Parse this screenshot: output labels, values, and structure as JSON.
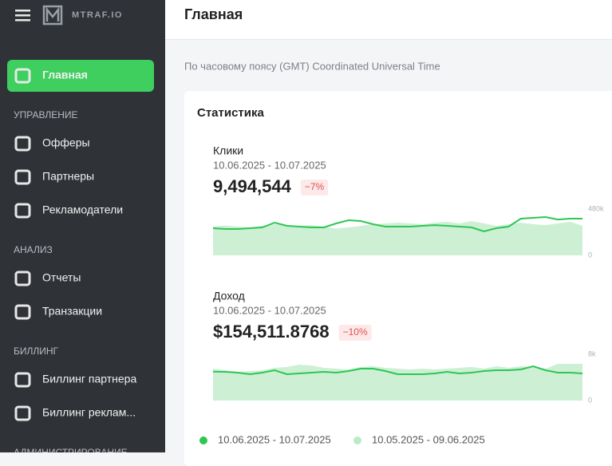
{
  "sidebar": {
    "brand": "MTRAF.IO",
    "menu": [
      {
        "label": "Главная",
        "kind": "link",
        "active": true
      },
      {
        "label": "УПРАВЛЕНИЕ",
        "kind": "section"
      },
      {
        "label": "Офферы",
        "kind": "link"
      },
      {
        "label": "Партнеры",
        "kind": "link"
      },
      {
        "label": "Рекламодатели",
        "kind": "link"
      },
      {
        "label": "АНАЛИЗ",
        "kind": "section"
      },
      {
        "label": "Отчеты",
        "kind": "link"
      },
      {
        "label": "Транзакции",
        "kind": "link"
      },
      {
        "label": "БИЛЛИНГ",
        "kind": "section"
      },
      {
        "label": "Биллинг партнера",
        "kind": "link"
      },
      {
        "label": "Биллинг реклам...",
        "kind": "link"
      },
      {
        "label": "АДМИНИСТРИРОВАНИЕ",
        "kind": "section"
      }
    ]
  },
  "header": {
    "title": "Главная"
  },
  "timezone": "По часовому поясу (GMT) Coordinated Universal Time",
  "stats": {
    "title": "Статистика"
  },
  "chart_data": [
    {
      "type": "area-line",
      "title": "Клики",
      "subtitle": "10.06.2025 - 10.07.2025",
      "total": "9,494,544",
      "change": "−7%",
      "ylim": [
        0,
        480000
      ],
      "yticks": [
        {
          "value": 480000,
          "label": "480k"
        },
        0
      ],
      "series": [
        {
          "name": "10.06.2025 - 10.07.2025",
          "color": "#2ec654",
          "values": [
            281000,
            273000,
            273000,
            281000,
            290000,
            339000,
            306000,
            298000,
            290000,
            290000,
            331000,
            364000,
            356000,
            323000,
            298000,
            298000,
            298000,
            306000,
            314000,
            306000,
            298000,
            290000,
            248000,
            281000,
            298000,
            381000,
            389000,
            397000,
            372000,
            381000,
            381000
          ]
        },
        {
          "name": "10.05.2025 - 09.06.2025",
          "color": "#cdf0d5",
          "values": [
            300000,
            310000,
            298000,
            290000,
            306000,
            323000,
            315000,
            306000,
            314000,
            298000,
            280000,
            290000,
            306000,
            323000,
            331000,
            339000,
            331000,
            323000,
            339000,
            348000,
            331000,
            356000,
            331000,
            306000,
            323000,
            339000,
            323000,
            314000,
            331000,
            348000,
            306000
          ]
        }
      ]
    },
    {
      "type": "area-line",
      "title": "Доход",
      "subtitle": "10.06.2025 - 10.07.2025",
      "total": "$154,511.8768",
      "change": "−10%",
      "ylim": [
        0,
        8000
      ],
      "yticks": [
        {
          "value": 8000,
          "label": "8k"
        },
        0
      ],
      "series": [
        {
          "name": "10.06.2025 - 10.07.2025",
          "color": "#2ec654",
          "values": [
            5000,
            4970,
            4830,
            4550,
            4830,
            5240,
            4550,
            4690,
            4830,
            4970,
            4830,
            5100,
            5520,
            5520,
            5100,
            4550,
            4550,
            4550,
            4690,
            4970,
            4690,
            4830,
            5100,
            5240,
            5240,
            5380,
            5930,
            5240,
            4830,
            4830,
            4690
          ]
        },
        {
          "name": "10.05.2025 - 09.06.2025",
          "color": "#cdf0d5",
          "values": [
            5520,
            5240,
            4970,
            5100,
            5240,
            5660,
            5800,
            6210,
            6070,
            5660,
            5520,
            5380,
            5800,
            5940,
            5660,
            5520,
            5380,
            5520,
            5380,
            5520,
            5660,
            5800,
            5520,
            5940,
            5660,
            5940,
            5800,
            5520,
            6350,
            6350,
            6350
          ]
        }
      ]
    }
  ]
}
